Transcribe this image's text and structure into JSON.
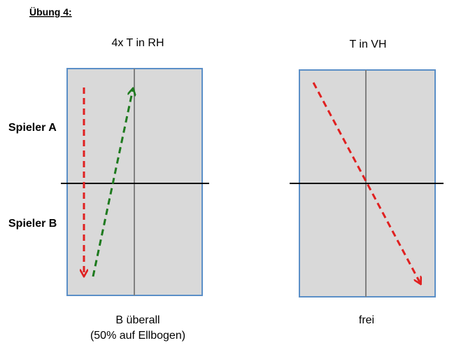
{
  "header": {
    "title": "Übung 4:"
  },
  "labels": {
    "player_a": "Spieler A",
    "player_b": "Spieler B"
  },
  "tables": [
    {
      "title": "4x T in RH",
      "caption": [
        "B überall",
        "(50% auf Ellbogen)"
      ]
    },
    {
      "title": "T in VH",
      "caption": [
        "frei"
      ]
    }
  ]
}
